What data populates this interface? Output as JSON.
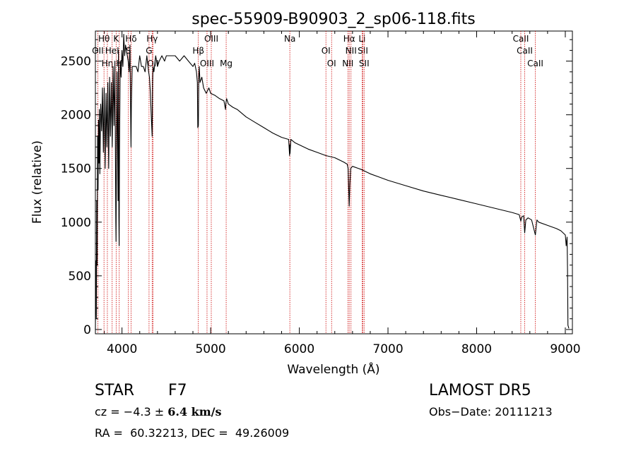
{
  "chart_data": {
    "type": "line",
    "title": "spec-55909-B90903_2_sp06-118.fits",
    "xlabel": "Wavelength (Å)",
    "ylabel": "Flux (relative)",
    "xlim": [
      3700,
      9080
    ],
    "ylim": [
      -40,
      2780
    ],
    "xticks": [
      4000,
      5000,
      6000,
      7000,
      8000,
      9000
    ],
    "yticks": [
      0,
      500,
      1000,
      1500,
      2000,
      2500
    ],
    "line_color": "#000000",
    "marker_color": "#cc0000",
    "series": [
      {
        "x": [
          3700,
          3705,
          3710,
          3715,
          3720,
          3725,
          3730,
          3735,
          3740,
          3745,
          3750,
          3760,
          3770,
          3780,
          3790,
          3800,
          3810,
          3820,
          3830,
          3840,
          3850,
          3860,
          3870,
          3880,
          3890,
          3900,
          3910,
          3920,
          3930,
          3933,
          3937,
          3945,
          3955,
          3960,
          3965,
          3968,
          3972,
          3980,
          3990,
          4000,
          4010,
          4020,
          4030,
          4040,
          4050,
          4060,
          4070,
          4080,
          4090,
          4100,
          4102,
          4106,
          4115,
          4125,
          4140,
          4160,
          4180,
          4200,
          4220,
          4240,
          4260,
          4280,
          4300,
          4310,
          4320,
          4330,
          4340,
          4345,
          4350,
          4360,
          4380,
          4400,
          4420,
          4450,
          4480,
          4500,
          4550,
          4600,
          4650,
          4700,
          4750,
          4800,
          4820,
          4840,
          4850,
          4855,
          4861,
          4866,
          4872,
          4880,
          4900,
          4920,
          4950,
          4980,
          5000,
          5050,
          5100,
          5150,
          5167,
          5172,
          5180,
          5200,
          5250,
          5300,
          5400,
          5500,
          5600,
          5700,
          5800,
          5880,
          5890,
          5893,
          5896,
          5905,
          5950,
          6000,
          6100,
          6200,
          6300,
          6400,
          6500,
          6540,
          6550,
          6563,
          6570,
          6580,
          6600,
          6700,
          6800,
          6900,
          7000,
          7200,
          7400,
          7600,
          7800,
          8000,
          8200,
          8400,
          8480,
          8498,
          8510,
          8530,
          8542,
          8555,
          8580,
          8620,
          8662,
          8680,
          8700,
          8800,
          8900,
          8950,
          9000,
          9010,
          9020,
          9025,
          9030,
          9040
        ],
        "y": [
          0,
          640,
          100,
          1200,
          600,
          1800,
          1300,
          1950,
          1550,
          2050,
          1450,
          2100,
          1850,
          2250,
          1650,
          2250,
          1500,
          2200,
          1700,
          2300,
          1500,
          2350,
          1800,
          2300,
          1700,
          2450,
          1900,
          2500,
          1000,
          820,
          1500,
          2400,
          1200,
          2600,
          1050,
          780,
          1650,
          2500,
          2350,
          2600,
          2450,
          2750,
          2550,
          2650,
          2600,
          2550,
          2500,
          2400,
          2650,
          1800,
          1700,
          2100,
          2450,
          2450,
          2450,
          2450,
          2400,
          2550,
          2450,
          2450,
          2400,
          2550,
          2400,
          2350,
          2200,
          2000,
          1800,
          2300,
          2450,
          2400,
          2550,
          2450,
          2500,
          2550,
          2500,
          2550,
          2550,
          2550,
          2500,
          2550,
          2500,
          2450,
          2480,
          2400,
          2300,
          1880,
          1900,
          2350,
          2450,
          2300,
          2350,
          2250,
          2200,
          2250,
          2200,
          2180,
          2150,
          2130,
          2050,
          2110,
          2150,
          2100,
          2070,
          2050,
          1980,
          1930,
          1880,
          1830,
          1790,
          1770,
          1620,
          1720,
          1640,
          1770,
          1740,
          1720,
          1680,
          1650,
          1620,
          1600,
          1560,
          1540,
          1500,
          1150,
          1350,
          1500,
          1520,
          1490,
          1450,
          1420,
          1390,
          1340,
          1290,
          1250,
          1210,
          1170,
          1130,
          1090,
          1070,
          1010,
          1050,
          1060,
          900,
          1020,
          1040,
          1020,
          880,
          1020,
          1000,
          970,
          940,
          920,
          880,
          780,
          860,
          560,
          40,
          10
        ]
      }
    ],
    "lines": [
      {
        "label": "Hθ",
        "x": 3797
      },
      {
        "label": "OII",
        "x": 3727
      },
      {
        "label": "Hη",
        "x": 3835
      },
      {
        "label": "K",
        "x": 3934
      },
      {
        "label": "HeI",
        "x": 3889
      },
      {
        "label": "H",
        "x": 3969
      },
      {
        "label": "Hδ",
        "x": 4102
      },
      {
        "label": "S",
        "x": 4072
      },
      {
        "label": "OII",
        "x": 4350
      },
      {
        "label": "Hγ",
        "x": 4340
      },
      {
        "label": "G",
        "x": 4305
      },
      {
        "label": "OIII",
        "x": 4959
      },
      {
        "label": "OIII",
        "x": 5007
      },
      {
        "label": "Hβ",
        "x": 4861
      },
      {
        "label": "Mg",
        "x": 5175
      },
      {
        "label": "Na",
        "x": 5893
      },
      {
        "label": "OI",
        "x": 6300
      },
      {
        "label": "OI",
        "x": 6364
      },
      {
        "label": "Hα",
        "x": 6563
      },
      {
        "label": "SII",
        "x": 6717
      },
      {
        "label": "NII",
        "x": 6548
      },
      {
        "label": "Li",
        "x": 6708
      },
      {
        "label": "NII",
        "x": 6583
      },
      {
        "label": "SII",
        "x": 6731
      },
      {
        "label": "CaII",
        "x": 8498
      },
      {
        "label": "CaII",
        "x": 8542
      },
      {
        "label": "CaII",
        "x": 8662
      }
    ]
  },
  "info": {
    "object_class": "STAR",
    "subclass": "F7",
    "survey": "LAMOST DR5",
    "cz_prefix": "cz = ",
    "cz_value": "−4.3",
    "cz_pm": "±",
    "cz_err": "6.4 km/s",
    "obs_date": "Obs−Date: 20111213",
    "radec": "RA =  60.32213, DEC =  49.26009"
  }
}
